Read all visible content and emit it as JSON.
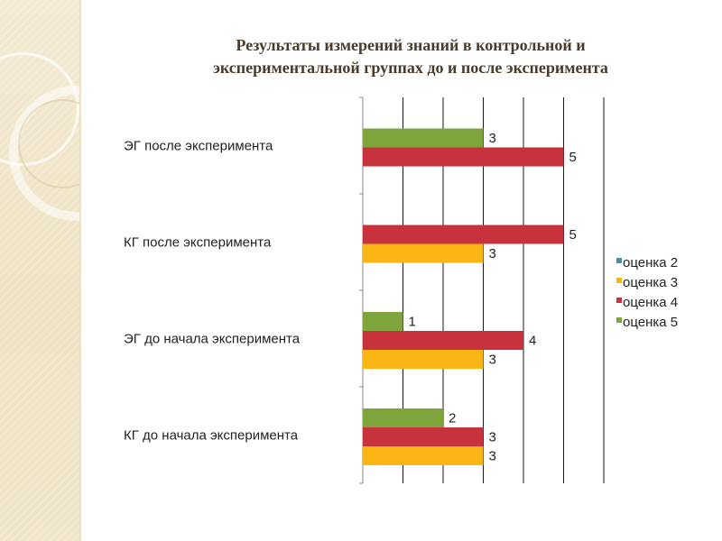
{
  "title_lines": [
    "Результаты измерений знаний в контрольной и",
    "экспериментальной группах до и после эксперимента"
  ],
  "chart_data": {
    "type": "bar",
    "orientation": "horizontal",
    "title": "Результаты измерений знаний в контрольной и экспериментальной группах до и после эксперимента",
    "categories": [
      "КГ до начала эксперимента",
      "ЭГ до начала эксперимента",
      "КГ после эксперимента",
      "ЭГ после эксперимента"
    ],
    "series": [
      {
        "name": "оценка 2",
        "color": "#4a8fa6",
        "values": [
          null,
          null,
          null,
          null
        ]
      },
      {
        "name": "оценка 3",
        "color": "#fbb616",
        "values": [
          3,
          3,
          3,
          null
        ]
      },
      {
        "name": "оценка 4",
        "color": "#c8323c",
        "values": [
          3,
          4,
          5,
          5
        ]
      },
      {
        "name": "оценка 5",
        "color": "#7fa43b",
        "values": [
          2,
          1,
          null,
          3
        ]
      }
    ],
    "xlim": [
      0,
      6
    ],
    "grid": true,
    "legend": "right",
    "xlabel": "",
    "ylabel": ""
  }
}
